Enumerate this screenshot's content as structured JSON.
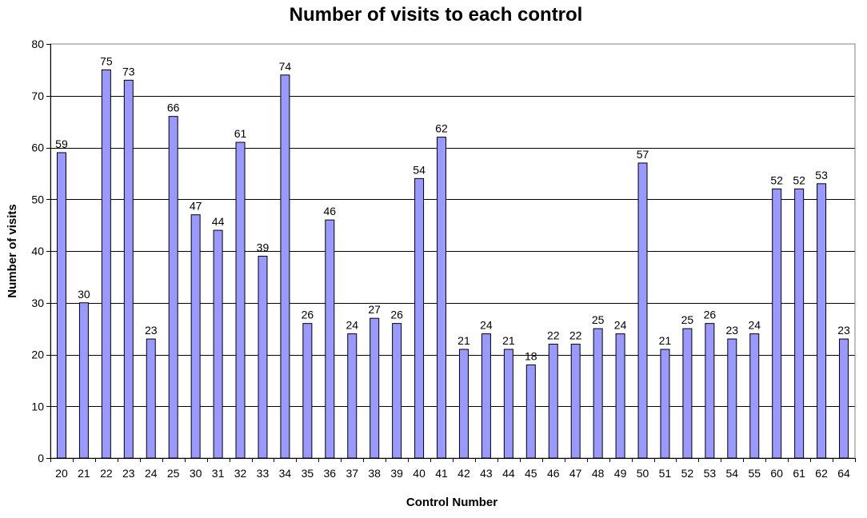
{
  "chart_data": {
    "type": "bar",
    "title": "Number of visits to each control",
    "xlabel": "Control Number",
    "ylabel": "Number of visits",
    "ylim": [
      0,
      80
    ],
    "yticks": [
      0,
      10,
      20,
      30,
      40,
      50,
      60,
      70,
      80
    ],
    "grid": true,
    "legend": "none",
    "bar_color": "#9999ff",
    "bar_stroke": "#000000",
    "categories": [
      "20",
      "21",
      "22",
      "23",
      "24",
      "25",
      "30",
      "31",
      "32",
      "33",
      "34",
      "35",
      "36",
      "37",
      "38",
      "39",
      "40",
      "41",
      "42",
      "43",
      "44",
      "45",
      "46",
      "47",
      "48",
      "49",
      "50",
      "51",
      "52",
      "53",
      "54",
      "55",
      "60",
      "61",
      "62",
      "64"
    ],
    "values": [
      59,
      30,
      75,
      73,
      23,
      66,
      47,
      44,
      61,
      39,
      74,
      26,
      46,
      24,
      27,
      26,
      54,
      62,
      21,
      24,
      21,
      18,
      22,
      22,
      25,
      24,
      57,
      21,
      25,
      26,
      23,
      24,
      52,
      52,
      53,
      23
    ]
  }
}
